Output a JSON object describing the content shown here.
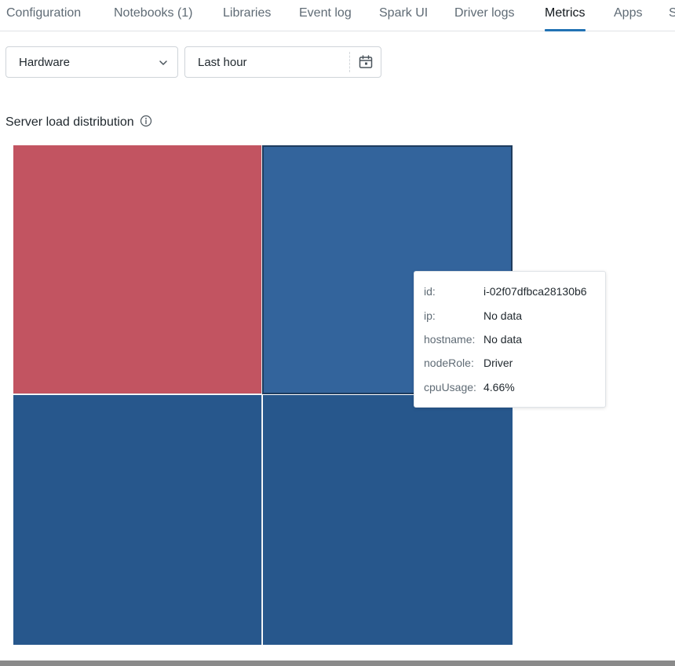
{
  "tabs": [
    {
      "label": "Configuration"
    },
    {
      "label": "Notebooks (1)"
    },
    {
      "label": "Libraries"
    },
    {
      "label": "Event log"
    },
    {
      "label": "Spark UI"
    },
    {
      "label": "Driver logs"
    },
    {
      "label": "Metrics",
      "active": true
    },
    {
      "label": "Apps"
    },
    {
      "label": "S"
    }
  ],
  "controls": {
    "metric_select": "Hardware",
    "time_range": "Last hour"
  },
  "chart": {
    "title": "Server load distribution",
    "cells": [
      {
        "color": "#c25461"
      },
      {
        "color": "#33649c"
      },
      {
        "color": "#27578c"
      },
      {
        "color": "#27578c"
      }
    ]
  },
  "tooltip": {
    "rows": [
      {
        "key": "id:",
        "value": "i-02f07dfbca28130b6"
      },
      {
        "key": "ip:",
        "value": "No data"
      },
      {
        "key": "hostname:",
        "value": "No data"
      },
      {
        "key": "nodeRole:",
        "value": "Driver"
      },
      {
        "key": "cpuUsage:",
        "value": "4.66%"
      }
    ]
  },
  "colors": {
    "accent": "#2272b4",
    "high_load": "#c25461",
    "low_load": "#27578c"
  }
}
